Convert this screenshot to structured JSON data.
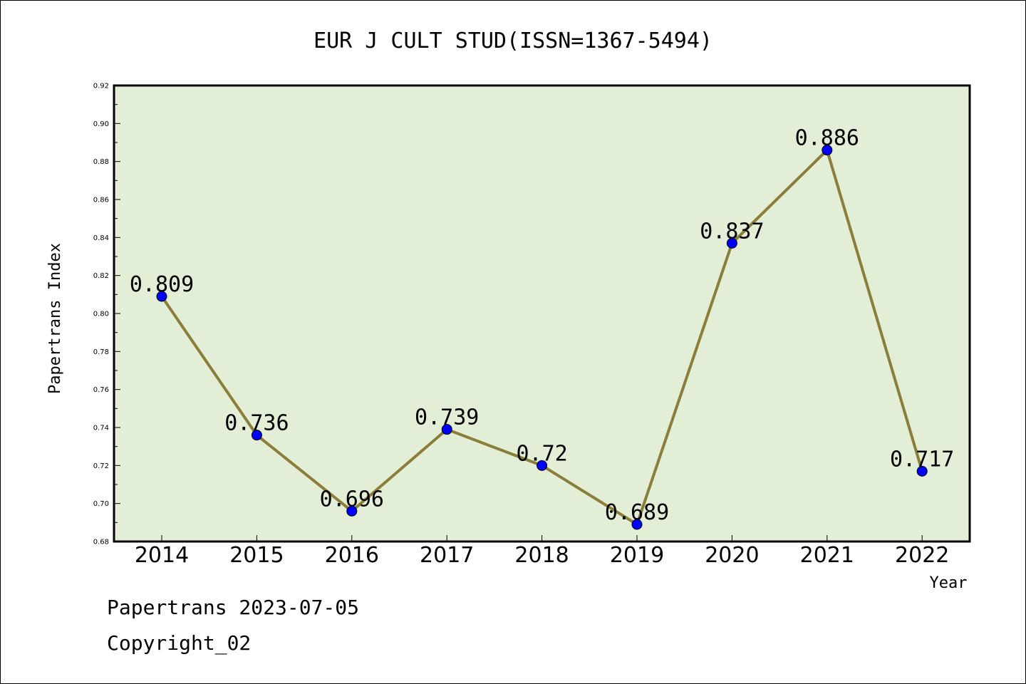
{
  "chart_data": {
    "type": "line",
    "title": "EUR J CULT STUD(ISSN=1367-5494)",
    "xlabel": "Year",
    "ylabel": "Papertrans Index",
    "categories": [
      "2014",
      "2015",
      "2016",
      "2017",
      "2018",
      "2019",
      "2020",
      "2021",
      "2022"
    ],
    "values": [
      0.809,
      0.736,
      0.696,
      0.739,
      0.72,
      0.689,
      0.837,
      0.886,
      0.717
    ],
    "data_labels": [
      "0.809",
      "0.736",
      "0.696",
      "0.739",
      "0.72",
      "0.689",
      "0.837",
      "0.886",
      "0.717"
    ],
    "ylim": [
      0.68,
      0.92
    ],
    "yticks": [
      "0.68",
      "0.70",
      "0.72",
      "0.74",
      "0.76",
      "0.78",
      "0.80",
      "0.82",
      "0.84",
      "0.86",
      "0.88",
      "0.90",
      "0.92"
    ],
    "grid": false,
    "colors": {
      "plot_background": "#e2efd6",
      "line": "#8b7d3a",
      "marker": "#0000ff"
    }
  },
  "footer": {
    "source_line": "Papertrans 2023-07-05",
    "copyright_line": "Copyright_02"
  }
}
